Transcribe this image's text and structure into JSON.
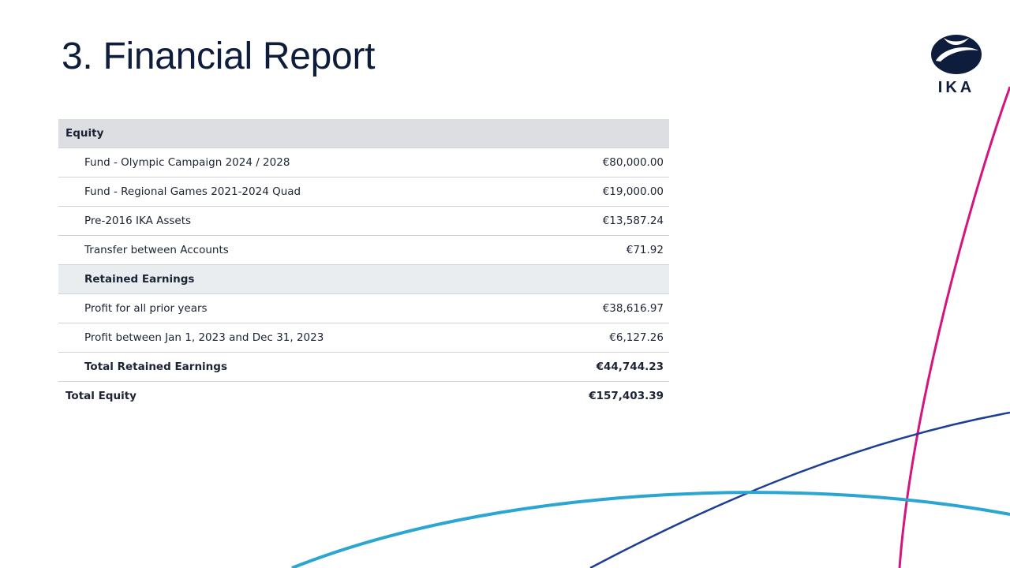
{
  "slide": {
    "title": "3. Financial Report"
  },
  "logo": {
    "text": "IKA",
    "icon": "ika-swirl-logo-icon"
  },
  "colors": {
    "title": "#0f1d3c",
    "magenta_curve": "#d4147f",
    "navy_curve": "#1c3f94",
    "cyan_curve": "#2aa6d0",
    "header_bg": "#dcdee2",
    "subheader_bg": "#e9edf0"
  },
  "table": {
    "section_label": "Equity",
    "rows": [
      {
        "label": "Fund - Olympic Campaign 2024 / 2028",
        "amount": "€80,000.00"
      },
      {
        "label": "Fund - Regional Games 2021-2024 Quad",
        "amount": "€19,000.00"
      },
      {
        "label": "Pre-2016 IKA Assets",
        "amount": "€13,587.24"
      },
      {
        "label": "Transfer between Accounts",
        "amount": "€71.92"
      }
    ],
    "retained": {
      "label": "Retained Earnings",
      "rows": [
        {
          "label": "Profit for all prior years",
          "amount": "€38,616.97"
        },
        {
          "label": "Profit between Jan 1, 2023 and Dec 31, 2023",
          "amount": "€6,127.26"
        }
      ],
      "total_label": "Total Retained Earnings",
      "total_amount": "€44,744.23"
    },
    "total_label": "Total Equity",
    "total_amount": "€157,403.39"
  }
}
